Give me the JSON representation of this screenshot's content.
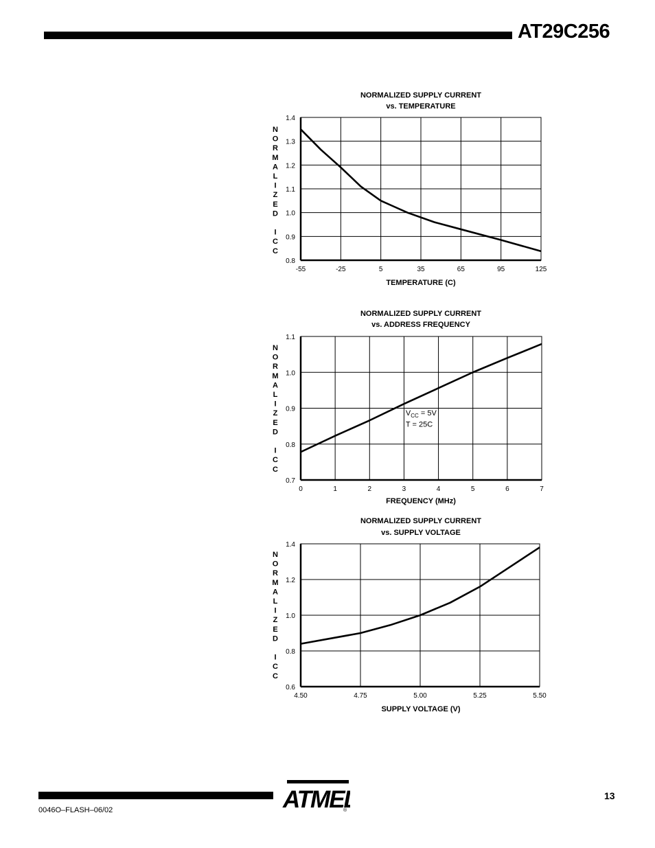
{
  "header": {
    "title": "AT29C256"
  },
  "footer": {
    "doc_id": "0046O–FLASH–06/02",
    "page_number": "13",
    "logo_text": "ATMEL",
    "registered": "®"
  },
  "chart_data": [
    {
      "type": "line",
      "title": "NORMALIZED SUPPLY CURRENT",
      "subtitle": "vs. TEMPERATURE",
      "xlabel": "TEMPERATURE (C)",
      "ylabel": "NORMALIZED ICC",
      "ylabel_letters": [
        "N",
        "O",
        "R",
        "M",
        "A",
        "L",
        "I",
        "Z",
        "E",
        "D",
        "",
        "I",
        "C",
        "C"
      ],
      "xlim": [
        -55,
        125
      ],
      "ylim": [
        0.8,
        1.4
      ],
      "xticks": [
        -55,
        -25,
        5,
        35,
        65,
        95,
        125
      ],
      "xtick_labels": [
        "-55",
        "-25",
        "5",
        "35",
        "65",
        "95",
        "125"
      ],
      "yticks": [
        0.8,
        0.9,
        1.0,
        1.1,
        1.2,
        1.3,
        1.4
      ],
      "ytick_labels": [
        "0.8",
        "0.9",
        "1.0",
        "1.1",
        "1.2",
        "1.3",
        "1.4"
      ],
      "grid": true,
      "series": [
        {
          "name": "ICC",
          "x": [
            -55,
            -40,
            -25,
            -10,
            5,
            15,
            25,
            45,
            65,
            95,
            125
          ],
          "y": [
            1.35,
            1.265,
            1.19,
            1.11,
            1.05,
            1.025,
            1.0,
            0.96,
            0.93,
            0.885,
            0.838
          ]
        }
      ],
      "annotations": []
    },
    {
      "type": "line",
      "title": "NORMALIZED SUPPLY CURRENT",
      "subtitle": "vs. ADDRESS FREQUENCY",
      "xlabel": "FREQUENCY (MHz)",
      "ylabel": "NORMALIZED ICC",
      "ylabel_letters": [
        "N",
        "O",
        "R",
        "M",
        "A",
        "L",
        "I",
        "Z",
        "E",
        "D",
        "",
        "I",
        "C",
        "C"
      ],
      "xlim": [
        0,
        7
      ],
      "ylim": [
        0.7,
        1.1
      ],
      "xticks": [
        0,
        1,
        2,
        3,
        4,
        5,
        6,
        7
      ],
      "xtick_labels": [
        "0",
        "1",
        "2",
        "3",
        "4",
        "5",
        "6",
        "7"
      ],
      "yticks": [
        0.7,
        0.8,
        0.9,
        1.0,
        1.1
      ],
      "ytick_labels": [
        "0.7",
        "0.8",
        "0.9",
        "1.0",
        "1.1"
      ],
      "grid": true,
      "series": [
        {
          "name": "ICC",
          "x": [
            0,
            1,
            2,
            3,
            4,
            5,
            6,
            7
          ],
          "y": [
            0.778,
            0.823,
            0.866,
            0.912,
            0.956,
            1.0,
            1.04,
            1.079
          ]
        }
      ],
      "annotations": [
        {
          "main": "V",
          "sub": "CC",
          "rest": " = 5V",
          "x": 3.05,
          "y": 0.88
        },
        {
          "main": "T = 25C",
          "sub": "",
          "rest": "",
          "x": 3.05,
          "y": 0.848
        }
      ]
    },
    {
      "type": "line",
      "title": "NORMALIZED SUPPLY CURRENT",
      "subtitle": "vs. SUPPLY VOLTAGE",
      "xlabel": "SUPPLY VOLTAGE (V)",
      "ylabel": "NORMALIZED ICC",
      "ylabel_letters": [
        "N",
        "O",
        "R",
        "M",
        "A",
        "L",
        "I",
        "Z",
        "E",
        "D",
        "",
        "I",
        "C",
        "C"
      ],
      "xlim": [
        4.5,
        5.5
      ],
      "ylim": [
        0.6,
        1.4
      ],
      "xticks": [
        4.5,
        4.75,
        5.0,
        5.25,
        5.5
      ],
      "xtick_labels": [
        "4.50",
        "4.75",
        "5.00",
        "5.25",
        "5.50"
      ],
      "yticks": [
        0.6,
        0.8,
        1.0,
        1.2,
        1.4
      ],
      "ytick_labels": [
        "0.6",
        "0.8",
        "1.0",
        "1.2",
        "1.4"
      ],
      "grid": true,
      "series": [
        {
          "name": "ICC",
          "x": [
            4.5,
            4.625,
            4.75,
            4.875,
            5.0,
            5.125,
            5.25,
            5.375,
            5.5
          ],
          "y": [
            0.84,
            0.87,
            0.9,
            0.945,
            1.0,
            1.07,
            1.16,
            1.27,
            1.38
          ]
        }
      ],
      "annotations": []
    }
  ]
}
